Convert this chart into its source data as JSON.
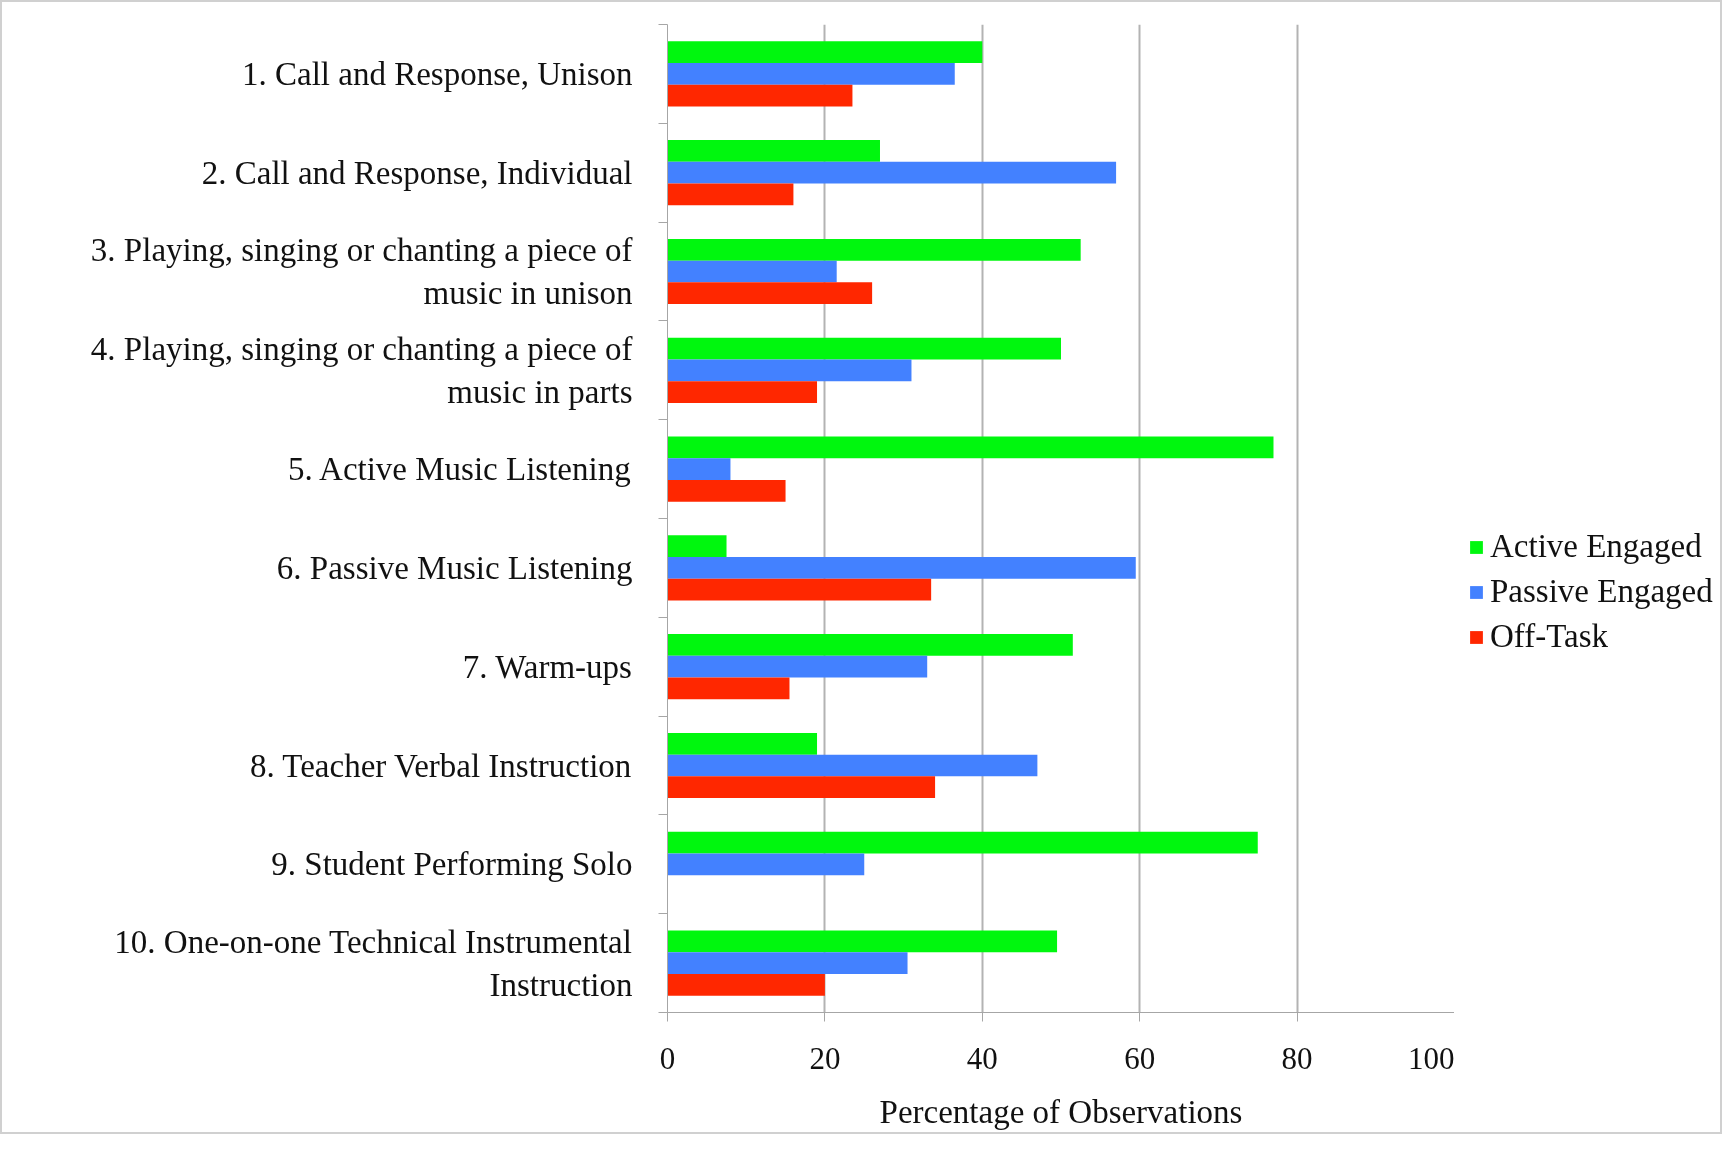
{
  "chart_data": {
    "type": "bar",
    "orientation": "horizontal",
    "xlabel": "Percentage of Observations",
    "categories": [
      "1. Call and Response, Unison",
      "2. Call and Response, Individual",
      "3. Playing, singing or chanting a piece of music in unison",
      "4. Playing, singing or chanting a piece of music in parts",
      "5. Active Music Listening",
      "6. Passive Music Listening",
      "7. Warm-ups",
      "8. Teacher Verbal Instruction",
      "9. Student Performing Solo",
      "10. One-on-one Technical Instrumental Instruction"
    ],
    "series": [
      {
        "name": "Active Engaged",
        "color": "#00f70e",
        "values": [
          40,
          27,
          52.5,
          50,
          77,
          7.5,
          51.5,
          19,
          75,
          49.5
        ]
      },
      {
        "name": "Passive Engaged",
        "color": "#4381ff",
        "values": [
          36.5,
          57,
          21.5,
          31,
          8,
          59.5,
          33,
          47,
          25,
          30.5
        ]
      },
      {
        "name": "Off-Task",
        "color": "#ff2700",
        "values": [
          23.5,
          16,
          26,
          19,
          15,
          33.5,
          15.5,
          34,
          null,
          20
        ]
      }
    ],
    "xlim": [
      0,
      100
    ],
    "xticks": [
      0,
      20,
      40,
      60,
      80,
      100
    ],
    "grid": "x",
    "legend": "right"
  }
}
